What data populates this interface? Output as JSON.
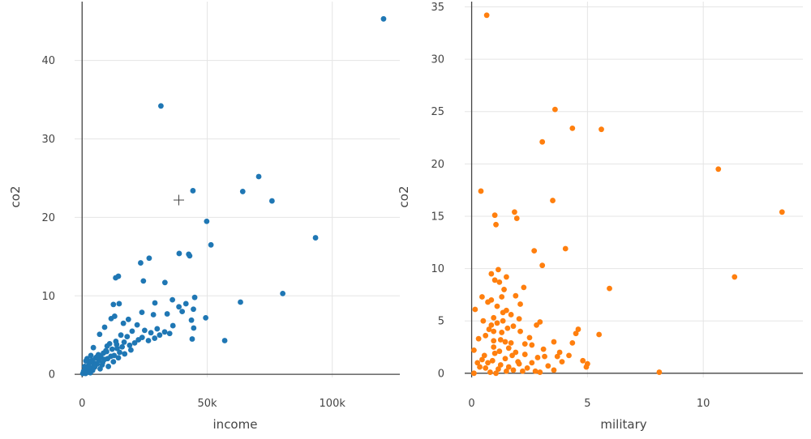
{
  "chart_data": [
    {
      "type": "scatter",
      "xlabel": "income",
      "ylabel": "co2",
      "xlim": [
        -3000,
        127000
      ],
      "ylim": [
        -0.4,
        47.5
      ],
      "xticks": [
        {
          "v": 0,
          "label": "0"
        },
        {
          "v": 50000,
          "label": "50k"
        },
        {
          "v": 100000,
          "label": "100k"
        }
      ],
      "yticks": [
        {
          "v": 0,
          "label": "0"
        },
        {
          "v": 10,
          "label": "10"
        },
        {
          "v": 20,
          "label": "20"
        },
        {
          "v": 30,
          "label": "30"
        },
        {
          "v": 40,
          "label": "40"
        }
      ],
      "color": "#1f77b4",
      "points": [
        [
          120500,
          45.3
        ],
        [
          31500,
          34.2
        ],
        [
          70600,
          25.2
        ],
        [
          44300,
          23.4
        ],
        [
          64200,
          23.3
        ],
        [
          75900,
          22.1
        ],
        [
          49800,
          19.5
        ],
        [
          93300,
          17.4
        ],
        [
          51500,
          16.5
        ],
        [
          42600,
          15.3
        ],
        [
          38800,
          15.4
        ],
        [
          43000,
          15.1
        ],
        [
          26800,
          14.8
        ],
        [
          23400,
          14.2
        ],
        [
          14500,
          12.5
        ],
        [
          13400,
          12.3
        ],
        [
          33100,
          11.7
        ],
        [
          24500,
          11.9
        ],
        [
          80200,
          10.3
        ],
        [
          45000,
          9.8
        ],
        [
          36100,
          9.5
        ],
        [
          63300,
          9.2
        ],
        [
          29100,
          9.1
        ],
        [
          41500,
          9.0
        ],
        [
          14800,
          9.0
        ],
        [
          12500,
          8.9
        ],
        [
          38700,
          8.6
        ],
        [
          44500,
          8.3
        ],
        [
          34000,
          7.7
        ],
        [
          23900,
          7.9
        ],
        [
          40000,
          8.0
        ],
        [
          28500,
          7.6
        ],
        [
          13000,
          7.4
        ],
        [
          18500,
          7.0
        ],
        [
          11600,
          7.1
        ],
        [
          43700,
          6.9
        ],
        [
          49400,
          7.2
        ],
        [
          22000,
          6.3
        ],
        [
          36300,
          6.2
        ],
        [
          44600,
          5.9
        ],
        [
          16500,
          6.5
        ],
        [
          9000,
          6.0
        ],
        [
          30000,
          5.8
        ],
        [
          33000,
          5.4
        ],
        [
          25000,
          5.6
        ],
        [
          20000,
          5.5
        ],
        [
          27500,
          5.3
        ],
        [
          15500,
          5.0
        ],
        [
          7000,
          5.1
        ],
        [
          35000,
          5.2
        ],
        [
          29000,
          4.6
        ],
        [
          26500,
          4.3
        ],
        [
          22500,
          4.4
        ],
        [
          18000,
          4.8
        ],
        [
          13500,
          4.2
        ],
        [
          11000,
          3.9
        ],
        [
          10000,
          3.6
        ],
        [
          44000,
          4.5
        ],
        [
          57000,
          4.3
        ],
        [
          21000,
          4.0
        ],
        [
          16000,
          3.5
        ],
        [
          12000,
          3.2
        ],
        [
          14000,
          3.3
        ],
        [
          9500,
          3.0
        ],
        [
          8500,
          2.7
        ],
        [
          4500,
          3.4
        ],
        [
          19500,
          3.1
        ],
        [
          17000,
          2.6
        ],
        [
          6500,
          2.5
        ],
        [
          3500,
          2.4
        ],
        [
          15000,
          2.8
        ],
        [
          11500,
          2.3
        ],
        [
          7500,
          2.2
        ],
        [
          5500,
          2.1
        ],
        [
          9000,
          1.9
        ],
        [
          2000,
          2.0
        ],
        [
          4000,
          1.8
        ],
        [
          12500,
          1.6
        ],
        [
          3000,
          1.5
        ],
        [
          1500,
          1.7
        ],
        [
          6000,
          1.3
        ],
        [
          8000,
          1.2
        ],
        [
          2500,
          1.1
        ],
        [
          10500,
          1.0
        ],
        [
          5000,
          0.9
        ],
        [
          1000,
          1.0
        ],
        [
          3800,
          0.8
        ],
        [
          7200,
          0.7
        ],
        [
          2200,
          0.6
        ],
        [
          1200,
          0.5
        ],
        [
          4200,
          0.5
        ],
        [
          600,
          0.4
        ],
        [
          1800,
          0.3
        ],
        [
          2800,
          0.3
        ],
        [
          800,
          0.2
        ],
        [
          300,
          0.1
        ],
        [
          1400,
          0.1
        ],
        [
          3300,
          0.2
        ],
        [
          5200,
          1.4
        ],
        [
          6800,
          1.8
        ],
        [
          9800,
          2.9
        ],
        [
          13800,
          3.8
        ],
        [
          16800,
          4.1
        ],
        [
          19000,
          3.7
        ],
        [
          24000,
          4.7
        ],
        [
          31000,
          5.0
        ],
        [
          12800,
          2.4
        ],
        [
          10200,
          2.0
        ],
        [
          4700,
          1.2
        ],
        [
          2600,
          0.9
        ],
        [
          3600,
          1.6
        ],
        [
          5800,
          2.2
        ],
        [
          8200,
          1.5
        ],
        [
          14500,
          2.1
        ]
      ]
    },
    {
      "type": "scatter",
      "xlabel": "military",
      "ylabel": "co2",
      "xlim": [
        -0.3,
        14.3
      ],
      "ylim": [
        -0.4,
        35.5
      ],
      "xticks": [
        {
          "v": 0,
          "label": "0"
        },
        {
          "v": 5,
          "label": "5"
        },
        {
          "v": 10,
          "label": "10"
        }
      ],
      "yticks": [
        {
          "v": 0,
          "label": "0"
        },
        {
          "v": 5,
          "label": "5"
        },
        {
          "v": 10,
          "label": "10"
        },
        {
          "v": 15,
          "label": "15"
        },
        {
          "v": 20,
          "label": "20"
        },
        {
          "v": 25,
          "label": "25"
        },
        {
          "v": 30,
          "label": "30"
        },
        {
          "v": 35,
          "label": "35"
        }
      ],
      "color": "#ff7f0e",
      "points": [
        [
          0.65,
          34.2
        ],
        [
          3.6,
          25.2
        ],
        [
          4.35,
          23.4
        ],
        [
          5.6,
          23.3
        ],
        [
          3.05,
          22.1
        ],
        [
          10.65,
          19.5
        ],
        [
          0.4,
          17.4
        ],
        [
          3.5,
          16.5
        ],
        [
          13.4,
          15.4
        ],
        [
          1.85,
          15.4
        ],
        [
          1.0,
          15.1
        ],
        [
          1.95,
          14.8
        ],
        [
          1.05,
          14.2
        ],
        [
          4.05,
          11.9
        ],
        [
          2.7,
          11.7
        ],
        [
          3.05,
          10.3
        ],
        [
          1.15,
          9.9
        ],
        [
          0.85,
          9.5
        ],
        [
          1.5,
          9.2
        ],
        [
          11.35,
          9.2
        ],
        [
          1.0,
          8.9
        ],
        [
          1.2,
          8.7
        ],
        [
          2.25,
          8.2
        ],
        [
          5.95,
          8.1
        ],
        [
          0.45,
          7.3
        ],
        [
          0.85,
          7.0
        ],
        [
          1.3,
          7.3
        ],
        [
          1.9,
          7.4
        ],
        [
          0.7,
          6.8
        ],
        [
          1.1,
          6.4
        ],
        [
          0.15,
          6.1
        ],
        [
          1.5,
          6.0
        ],
        [
          1.7,
          5.6
        ],
        [
          0.95,
          5.3
        ],
        [
          1.35,
          5.8
        ],
        [
          2.05,
          5.2
        ],
        [
          0.5,
          5.0
        ],
        [
          2.95,
          4.9
        ],
        [
          2.8,
          4.6
        ],
        [
          1.1,
          4.8
        ],
        [
          0.85,
          4.6
        ],
        [
          1.55,
          4.3
        ],
        [
          4.6,
          4.2
        ],
        [
          2.1,
          4.0
        ],
        [
          0.95,
          4.0
        ],
        [
          4.5,
          3.8
        ],
        [
          5.5,
          3.7
        ],
        [
          0.3,
          3.3
        ],
        [
          1.3,
          3.9
        ],
        [
          1.8,
          4.5
        ],
        [
          1.45,
          3.0
        ],
        [
          3.55,
          3.0
        ],
        [
          4.35,
          2.9
        ],
        [
          2.6,
          2.7
        ],
        [
          0.95,
          2.5
        ],
        [
          2.3,
          2.8
        ],
        [
          0.1,
          2.2
        ],
        [
          1.6,
          2.4
        ],
        [
          1.2,
          2.1
        ],
        [
          3.8,
          2.0
        ],
        [
          4.2,
          1.7
        ],
        [
          3.7,
          1.6
        ],
        [
          2.3,
          1.8
        ],
        [
          2.85,
          1.5
        ],
        [
          3.15,
          1.6
        ],
        [
          1.75,
          1.7
        ],
        [
          0.45,
          1.3
        ],
        [
          0.9,
          1.2
        ],
        [
          1.45,
          1.4
        ],
        [
          1.0,
          1.9
        ],
        [
          0.7,
          1.0
        ],
        [
          1.25,
          0.8
        ],
        [
          4.8,
          1.2
        ],
        [
          5.0,
          0.9
        ],
        [
          4.95,
          0.6
        ],
        [
          2.05,
          0.9
        ],
        [
          2.6,
          1.0
        ],
        [
          3.3,
          0.7
        ],
        [
          0.6,
          0.5
        ],
        [
          1.15,
          0.4
        ],
        [
          1.8,
          0.3
        ],
        [
          2.2,
          0.2
        ],
        [
          2.95,
          0.1
        ],
        [
          8.1,
          0.1
        ],
        [
          0.1,
          0.0
        ],
        [
          0.8,
          0.1
        ],
        [
          1.5,
          0.2
        ],
        [
          3.55,
          0.3
        ],
        [
          0.35,
          0.6
        ],
        [
          2.0,
          1.1
        ],
        [
          1.7,
          2.9
        ],
        [
          2.5,
          3.4
        ],
        [
          3.1,
          2.3
        ],
        [
          0.6,
          3.6
        ],
        [
          1.35,
          5.0
        ],
        [
          0.95,
          3.1
        ],
        [
          1.6,
          0.6
        ],
        [
          2.4,
          0.5
        ],
        [
          1.05,
          0.0
        ],
        [
          0.55,
          1.7
        ],
        [
          3.9,
          1.1
        ],
        [
          2.75,
          0.2
        ],
        [
          0.25,
          1.0
        ],
        [
          1.9,
          2.0
        ],
        [
          1.25,
          3.2
        ],
        [
          2.1,
          6.6
        ],
        [
          1.4,
          8.0
        ],
        [
          0.75,
          4.2
        ]
      ]
    }
  ]
}
